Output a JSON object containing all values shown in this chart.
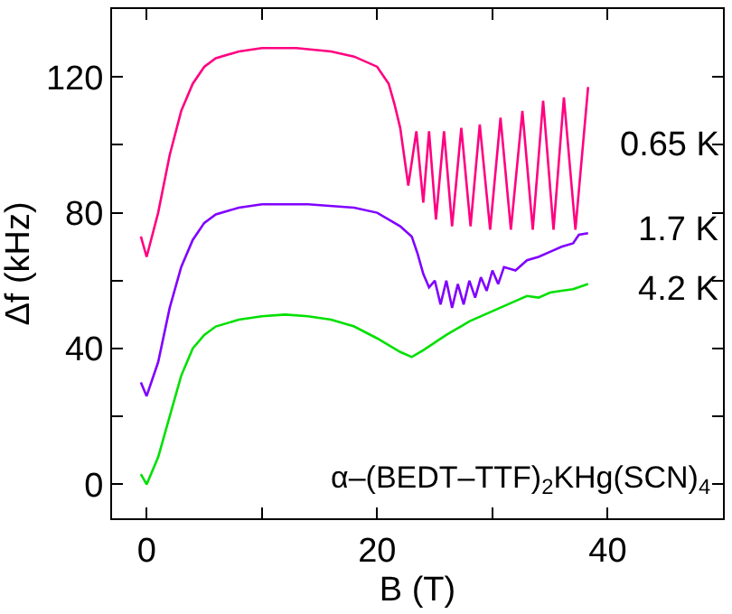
{
  "chart_data": {
    "type": "line",
    "xlabel": "B (T)",
    "ylabel": "Δf (kHz)",
    "xlim": [
      -3,
      50
    ],
    "xticks": [
      0,
      {
        "value": 10,
        "label": null
      },
      20,
      {
        "value": 30,
        "label": null
      },
      40,
      {
        "value": 50,
        "label": null
      }
    ],
    "ylim": [
      -10,
      140
    ],
    "yticks": [
      0,
      {
        "value": 20,
        "label": null
      },
      40,
      {
        "value": 60,
        "label": null
      },
      80,
      {
        "value": 100,
        "label": null
      },
      120
    ],
    "line_style": "solid",
    "annotations": [
      "α–(BEDT–TTF)$_{2}$KHg(SCN)$_{4}$"
    ],
    "series": [
      {
        "name": "0.65 K",
        "color": "#ff0080",
        "x": [
          -0.5,
          0,
          1,
          2,
          3,
          4,
          5,
          6,
          8,
          10,
          13,
          16,
          18,
          20,
          21,
          21.5,
          22,
          22.7,
          23.4,
          24,
          24.5,
          25.1,
          25.8,
          26.5,
          27.3,
          28.1,
          28.9,
          29.8,
          30.7,
          31.6,
          32.6,
          33.5,
          34.4,
          35.3,
          36.2,
          37.2,
          38.3
        ],
        "values": [
          73,
          67,
          80,
          97,
          110,
          118,
          123,
          125.5,
          127.5,
          128.5,
          128.5,
          127.5,
          126,
          123,
          118,
          112,
          105,
          88,
          104,
          83,
          104,
          78,
          104,
          76,
          105,
          76,
          106,
          75,
          108,
          75,
          110,
          75,
          113,
          75,
          114,
          75,
          117
        ]
      },
      {
        "name": "1.7 K",
        "color": "#8000ff",
        "x": [
          -0.5,
          0,
          1,
          2,
          3,
          4,
          5,
          6,
          8,
          10,
          14,
          18,
          20,
          22,
          23,
          23.5,
          24,
          24.5,
          25,
          25.5,
          26,
          26.5,
          27,
          27.5,
          28,
          28.5,
          29,
          29.5,
          30,
          30.5,
          31,
          32,
          33,
          34,
          35,
          36,
          37,
          37.5,
          38.3
        ],
        "values": [
          30,
          26,
          36,
          52,
          64,
          72,
          77,
          79.5,
          81.5,
          82.5,
          82.5,
          81.5,
          80,
          76,
          73,
          68,
          62,
          58,
          60,
          53,
          60,
          52,
          59,
          53,
          60,
          55,
          61,
          57,
          63,
          59,
          64,
          63,
          66,
          67,
          68.5,
          70,
          71,
          73.5,
          74
        ]
      },
      {
        "name": "4.2 K",
        "color": "#00e000",
        "x": [
          -0.5,
          0,
          1,
          2,
          3,
          4,
          5,
          6,
          8,
          10,
          12,
          14,
          16,
          18,
          20,
          22,
          23,
          24,
          26,
          28,
          30,
          32,
          33,
          34,
          35,
          36,
          37,
          38.3
        ],
        "values": [
          3,
          0,
          8,
          20,
          32,
          40,
          44,
          46.5,
          48.5,
          49.5,
          50,
          49.5,
          48.5,
          46.5,
          43,
          39,
          37.5,
          39.5,
          44,
          48,
          51,
          54,
          55.5,
          55,
          56.5,
          57,
          57.5,
          59
        ]
      }
    ]
  }
}
